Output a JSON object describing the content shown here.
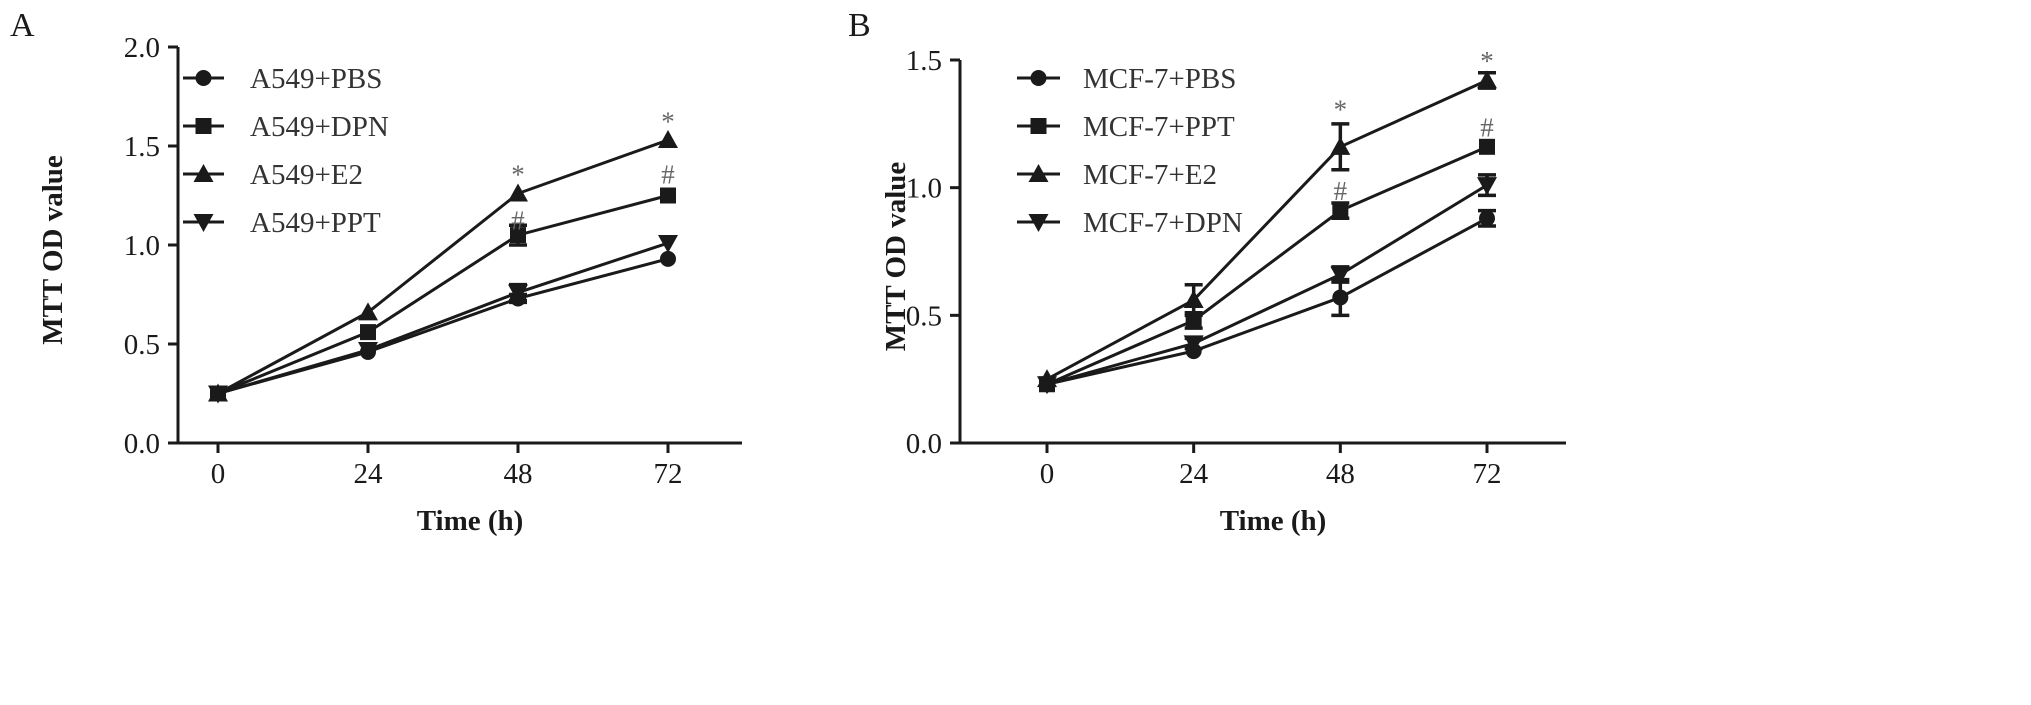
{
  "chart_data": [
    {
      "panel_label": "A",
      "type": "line",
      "xlabel": "Time (h)",
      "ylabel": "MTT OD value",
      "x": [
        0,
        24,
        48,
        72
      ],
      "x_ticks": [
        "0",
        "24",
        "48",
        "72"
      ],
      "ylim": [
        0,
        2.0
      ],
      "y_ticks": [
        "0.0",
        "0.5",
        "1.0",
        "1.5",
        "2.0"
      ],
      "legend_position": "top-left",
      "series": [
        {
          "name": "A549+PBS",
          "marker": "circle",
          "values": [
            0.25,
            0.46,
            0.73,
            0.93
          ],
          "errors": [
            0.01,
            0.01,
            0.02,
            0.01
          ]
        },
        {
          "name": "A549+DPN",
          "marker": "square",
          "values": [
            0.25,
            0.56,
            1.05,
            1.25
          ],
          "errors": [
            0.01,
            0.01,
            0.05,
            0.01
          ]
        },
        {
          "name": "A549+E2",
          "marker": "triangle",
          "values": [
            0.25,
            0.66,
            1.26,
            1.53
          ],
          "errors": [
            0.01,
            0.01,
            0.01,
            0.01
          ]
        },
        {
          "name": "A549+PPT",
          "marker": "triangle-down",
          "values": [
            0.25,
            0.47,
            0.76,
            1.01
          ],
          "errors": [
            0.01,
            0.01,
            0.04,
            0.01
          ]
        }
      ],
      "annotations": [
        {
          "x": 48,
          "y": 1.36,
          "text": "*"
        },
        {
          "x": 48,
          "y": 1.13,
          "text": "#"
        },
        {
          "x": 72,
          "y": 1.63,
          "text": "*"
        },
        {
          "x": 72,
          "y": 1.36,
          "text": "#"
        }
      ]
    },
    {
      "panel_label": "B",
      "type": "line",
      "xlabel": "Time (h)",
      "ylabel": "MTT OD value",
      "x": [
        0,
        24,
        48,
        72
      ],
      "x_ticks": [
        "0",
        "24",
        "48",
        "72"
      ],
      "ylim": [
        0,
        1.5
      ],
      "y_ticks": [
        "0.0",
        "0.5",
        "1.0",
        "1.5"
      ],
      "legend_position": "top-left",
      "series": [
        {
          "name": "MCF-7+PBS",
          "marker": "circle",
          "values": [
            0.23,
            0.36,
            0.57,
            0.88
          ],
          "errors": [
            0.01,
            0.01,
            0.07,
            0.03
          ]
        },
        {
          "name": "MCF-7+PPT",
          "marker": "square",
          "values": [
            0.23,
            0.48,
            0.91,
            1.16
          ],
          "errors": [
            0.01,
            0.03,
            0.03,
            0.01
          ]
        },
        {
          "name": "MCF-7+E2",
          "marker": "triangle",
          "values": [
            0.25,
            0.56,
            1.16,
            1.42
          ],
          "errors": [
            0.01,
            0.06,
            0.09,
            0.03
          ]
        },
        {
          "name": "MCF-7+DPN",
          "marker": "triangle-down",
          "values": [
            0.23,
            0.39,
            0.66,
            1.01
          ],
          "errors": [
            0.01,
            0.02,
            0.03,
            0.04
          ]
        }
      ],
      "annotations": [
        {
          "x": 48,
          "y": 1.31,
          "text": "*"
        },
        {
          "x": 48,
          "y": 0.99,
          "text": "#"
        },
        {
          "x": 72,
          "y": 1.5,
          "text": "*"
        },
        {
          "x": 72,
          "y": 1.24,
          "text": "#"
        }
      ]
    }
  ]
}
